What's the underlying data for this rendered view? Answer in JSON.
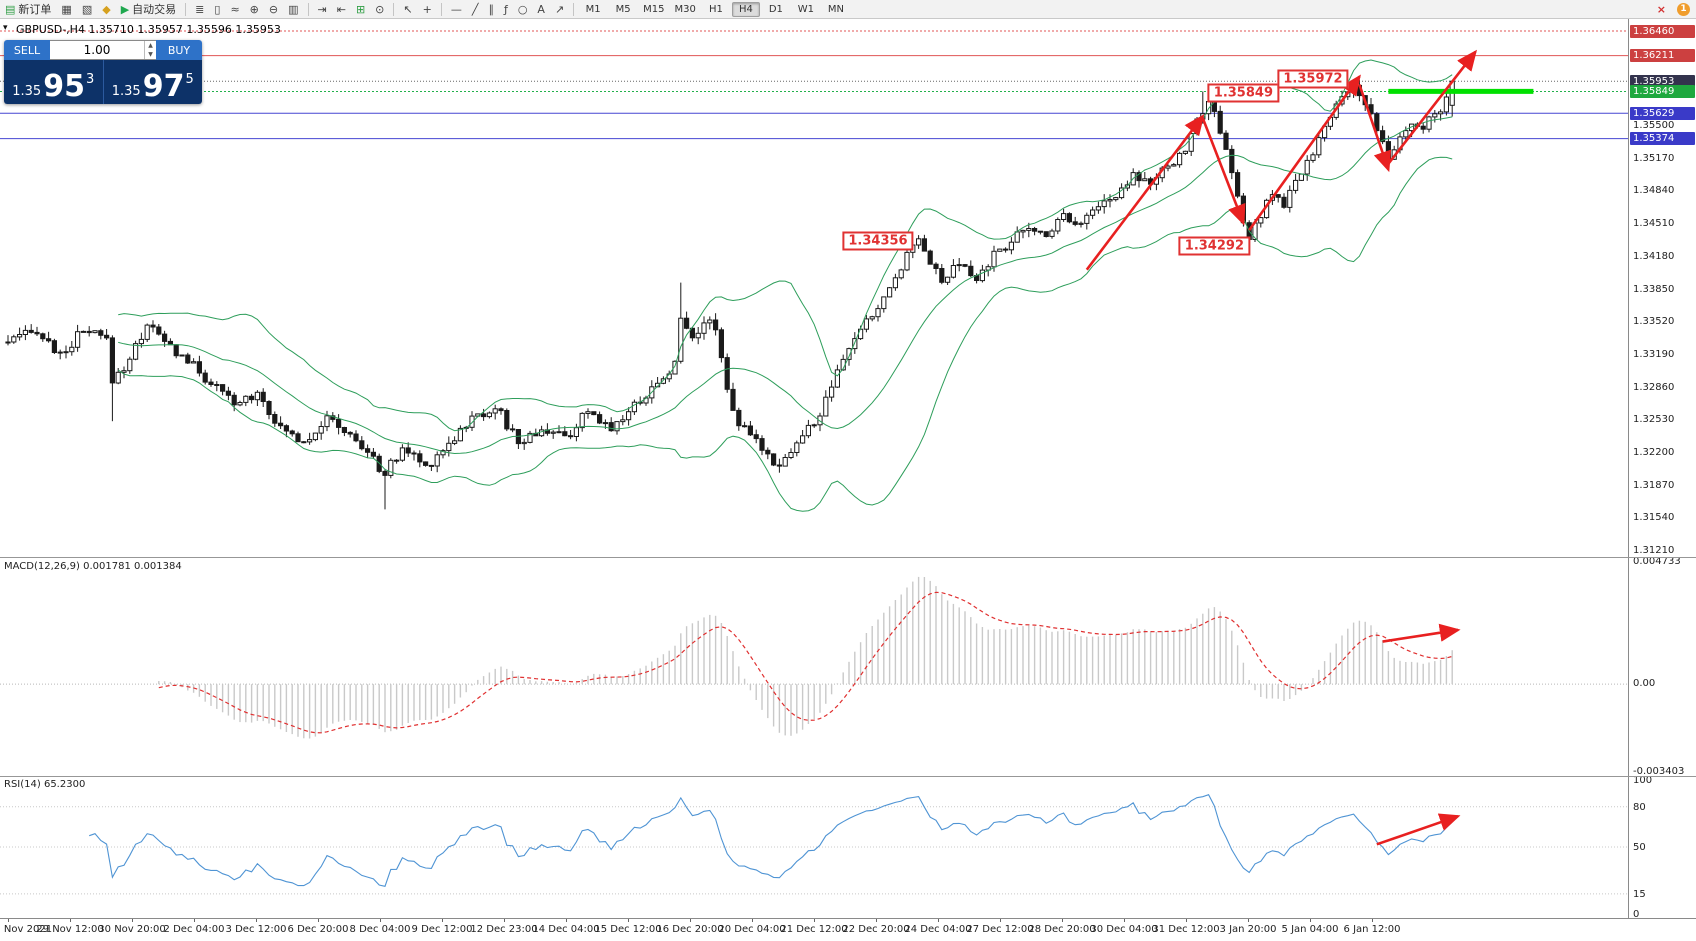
{
  "toolbar": {
    "new_order": "新订单",
    "auto_trading": "自动交易",
    "timeframes": [
      "M1",
      "M5",
      "M15",
      "M30",
      "H1",
      "H4",
      "D1",
      "W1",
      "MN"
    ],
    "active_timeframe": "H4",
    "notification_badge": "1"
  },
  "icons": {
    "collapse": "▾",
    "new_order": "▤",
    "charts": "▦",
    "profiles": "▧",
    "templates": "◆",
    "play": "▶",
    "bars": "≣",
    "candlesticks": "▯",
    "linechart": "≈",
    "zoom_in": "⊕",
    "zoom_out": "⊖",
    "tile": "▥",
    "autoscroll": "⇥",
    "shift": "⇤",
    "indicators": "⊞",
    "period": "⊙",
    "cursor": "↖",
    "crosshair": "+",
    "hline": "—",
    "trendline": "╱",
    "channel": "∥",
    "fibo": "ƒ",
    "shapes": "○",
    "text": "A",
    "arrowtool": "↗",
    "close": "×",
    "spin_up": "▲",
    "spin_down": "▼"
  },
  "symbol_header": "GBPUSD-,H4 1.35710 1.35957 1.35596 1.35953",
  "quote_panel": {
    "sell_label": "SELL",
    "buy_label": "BUY",
    "volume": "1.00",
    "bid": {
      "small": "1.35",
      "big": "95",
      "sup": "3"
    },
    "ask": {
      "small": "1.35",
      "big": "97",
      "sup": "5"
    }
  },
  "indicators": {
    "macd_label": "MACD(12,26,9) 0.001781 0.001384",
    "rsi_label": "RSI(14) 65.2300"
  },
  "price_axis": {
    "labels": [
      "1.35500",
      "1.35170",
      "1.34840",
      "1.34510",
      "1.34180",
      "1.33850",
      "1.33520",
      "1.33190",
      "1.32860",
      "1.32530",
      "1.32200",
      "1.31870",
      "1.31540",
      "1.31210"
    ]
  },
  "macd_axis": [
    "0.004733",
    "0.00",
    "-0.003403"
  ],
  "rsi_axis": [
    "100",
    "80",
    "50",
    "15",
    "0"
  ],
  "time_axis": [
    "Nov 2021",
    "29 Nov 12:00",
    "30 Nov 20:00",
    "2 Dec 04:00",
    "3 Dec 12:00",
    "6 Dec 20:00",
    "8 Dec 04:00",
    "9 Dec 12:00",
    "12 Dec 23:00",
    "14 Dec 04:00",
    "15 Dec 12:00",
    "16 Dec 20:00",
    "20 Dec 04:00",
    "21 Dec 12:00",
    "22 Dec 20:00",
    "24 Dec 04:00",
    "27 Dec 12:00",
    "28 Dec 20:00",
    "30 Dec 04:00",
    "31 Dec 12:00",
    "3 Jan 20:00",
    "5 Jan 04:00",
    "6 Jan 12:00"
  ],
  "annotations": {
    "boxes": [
      {
        "text": "1.35849",
        "i": 213,
        "p": 1.3583
      },
      {
        "text": "1.35972",
        "i": 225,
        "p": 1.3598
      },
      {
        "text": "1.34356",
        "i": 150,
        "p": 1.3434
      },
      {
        "text": "1.34292",
        "i": 208,
        "p": 1.3429
      }
    ],
    "arrows": [
      {
        "i1": 186,
        "p1": 1.3405,
        "i2": 206,
        "p2": 1.356
      },
      {
        "i1": 206,
        "p1": 1.3558,
        "i2": 213,
        "p2": 1.3452
      },
      {
        "i1": 214,
        "p1": 1.3445,
        "i2": 233,
        "p2": 1.36
      },
      {
        "i1": 233,
        "p1": 1.3592,
        "i2": 238,
        "p2": 1.3506
      },
      {
        "i1": 238,
        "p1": 1.3512,
        "i2": 253,
        "p2": 1.3625
      }
    ],
    "macd_arrow": {
      "i1": 237,
      "v1": 0.00165,
      "i2": 250,
      "v2": 0.0021
    },
    "rsi_arrow": {
      "i1": 236,
      "r1": 52,
      "i2": 250,
      "r2": 73
    }
  },
  "chart_data": {
    "type": "candlestick",
    "symbol": "GBPUSD",
    "timeframe": "H4",
    "bars": 250,
    "ylim": [
      1.3121,
      1.3646
    ],
    "ohlc_current": {
      "open": 1.3571,
      "high": 1.35957,
      "low": 1.35596,
      "close": 1.35953
    },
    "anchors": [
      [
        0,
        1.3332
      ],
      [
        5,
        1.3342
      ],
      [
        9,
        1.332
      ],
      [
        13,
        1.3342
      ],
      [
        17,
        1.3335
      ],
      [
        18,
        1.3292
      ],
      [
        21,
        1.3315
      ],
      [
        24,
        1.335
      ],
      [
        27,
        1.3332
      ],
      [
        31,
        1.3312
      ],
      [
        35,
        1.329
      ],
      [
        39,
        1.3268
      ],
      [
        43,
        1.3282
      ],
      [
        47,
        1.3246
      ],
      [
        51,
        1.3232
      ],
      [
        55,
        1.3256
      ],
      [
        59,
        1.3238
      ],
      [
        63,
        1.3215
      ],
      [
        65,
        1.3198
      ],
      [
        68,
        1.3225
      ],
      [
        72,
        1.3207
      ],
      [
        76,
        1.323
      ],
      [
        80,
        1.3256
      ],
      [
        84,
        1.3266
      ],
      [
        88,
        1.323
      ],
      [
        92,
        1.3244
      ],
      [
        96,
        1.3236
      ],
      [
        100,
        1.326
      ],
      [
        104,
        1.3244
      ],
      [
        108,
        1.327
      ],
      [
        112,
        1.329
      ],
      [
        115,
        1.3312
      ],
      [
        116,
        1.3355
      ],
      [
        118,
        1.3338
      ],
      [
        120,
        1.3352
      ],
      [
        122,
        1.3346
      ],
      [
        124,
        1.3285
      ],
      [
        126,
        1.3248
      ],
      [
        130,
        1.3224
      ],
      [
        133,
        1.3208
      ],
      [
        136,
        1.323
      ],
      [
        140,
        1.3258
      ],
      [
        143,
        1.3302
      ],
      [
        146,
        1.3336
      ],
      [
        149,
        1.3358
      ],
      [
        152,
        1.3386
      ],
      [
        155,
        1.3422
      ],
      [
        157,
        1.3438
      ],
      [
        159,
        1.3412
      ],
      [
        161,
        1.3392
      ],
      [
        164,
        1.341
      ],
      [
        167,
        1.3394
      ],
      [
        170,
        1.3422
      ],
      [
        173,
        1.3434
      ],
      [
        176,
        1.3446
      ],
      [
        179,
        1.344
      ],
      [
        182,
        1.3462
      ],
      [
        185,
        1.3452
      ],
      [
        188,
        1.347
      ],
      [
        191,
        1.3478
      ],
      [
        194,
        1.3504
      ],
      [
        197,
        1.3492
      ],
      [
        200,
        1.3508
      ],
      [
        203,
        1.3526
      ],
      [
        205,
        1.3556
      ],
      [
        207,
        1.3576
      ],
      [
        209,
        1.3542
      ],
      [
        211,
        1.3504
      ],
      [
        213,
        1.3452
      ],
      [
        214,
        1.3436
      ],
      [
        216,
        1.3458
      ],
      [
        218,
        1.3482
      ],
      [
        220,
        1.3468
      ],
      [
        222,
        1.3494
      ],
      [
        224,
        1.3514
      ],
      [
        226,
        1.3538
      ],
      [
        228,
        1.3558
      ],
      [
        230,
        1.358
      ],
      [
        232,
        1.3592
      ],
      [
        234,
        1.3572
      ],
      [
        236,
        1.3544
      ],
      [
        238,
        1.3516
      ],
      [
        240,
        1.3538
      ],
      [
        242,
        1.3552
      ],
      [
        244,
        1.3546
      ],
      [
        246,
        1.3562
      ],
      [
        248,
        1.3578
      ],
      [
        249,
        1.359
      ]
    ],
    "wicks": [
      {
        "i": 18,
        "l": 1.3252
      },
      {
        "i": 65,
        "l": 1.3163
      },
      {
        "i": 116,
        "h": 1.3392
      },
      {
        "i": 155,
        "h": 1.3442
      },
      {
        "i": 206,
        "h": 1.35849
      },
      {
        "i": 214,
        "l": 1.34292
      },
      {
        "i": 232,
        "h": 1.35972
      }
    ],
    "last_candle": {
      "o": 1.3571,
      "h": 1.35957,
      "l": 1.35596,
      "c": 1.35953
    },
    "levels": [
      {
        "label": "1.36460",
        "price": 1.3646,
        "color": "#e05555",
        "dash": "2,2",
        "badge": "#cc4040"
      },
      {
        "label": "1.36211",
        "price": 1.36211,
        "color": "#e05555",
        "dash": "",
        "badge": "#cc4040"
      },
      {
        "label": "1.35953",
        "price": 1.35953,
        "color": "#666666",
        "dash": "1,2",
        "badge": "#33334d"
      },
      {
        "label": "1.35849",
        "price": 1.35849,
        "color": "#22b14c",
        "dash": "2,2",
        "badge": "#1ea83e"
      },
      {
        "label": "1.35629",
        "price": 1.35629,
        "color": "#4646d2",
        "dash": "",
        "badge": "#3a3ac8"
      },
      {
        "label": "1.35374",
        "price": 1.35374,
        "color": "#4646d2",
        "dash": "",
        "badge": "#3a3ac8"
      }
    ],
    "green_bar": {
      "i1": 238,
      "i2": 263,
      "p": 1.3585
    },
    "bollinger": {
      "period": 20,
      "dev": 2
    },
    "macd": {
      "fast": 12,
      "slow": 26,
      "signal": 9,
      "value": 0.001781,
      "signal_value": 0.001384
    },
    "rsi": {
      "period": 14,
      "value": 65.23
    }
  }
}
